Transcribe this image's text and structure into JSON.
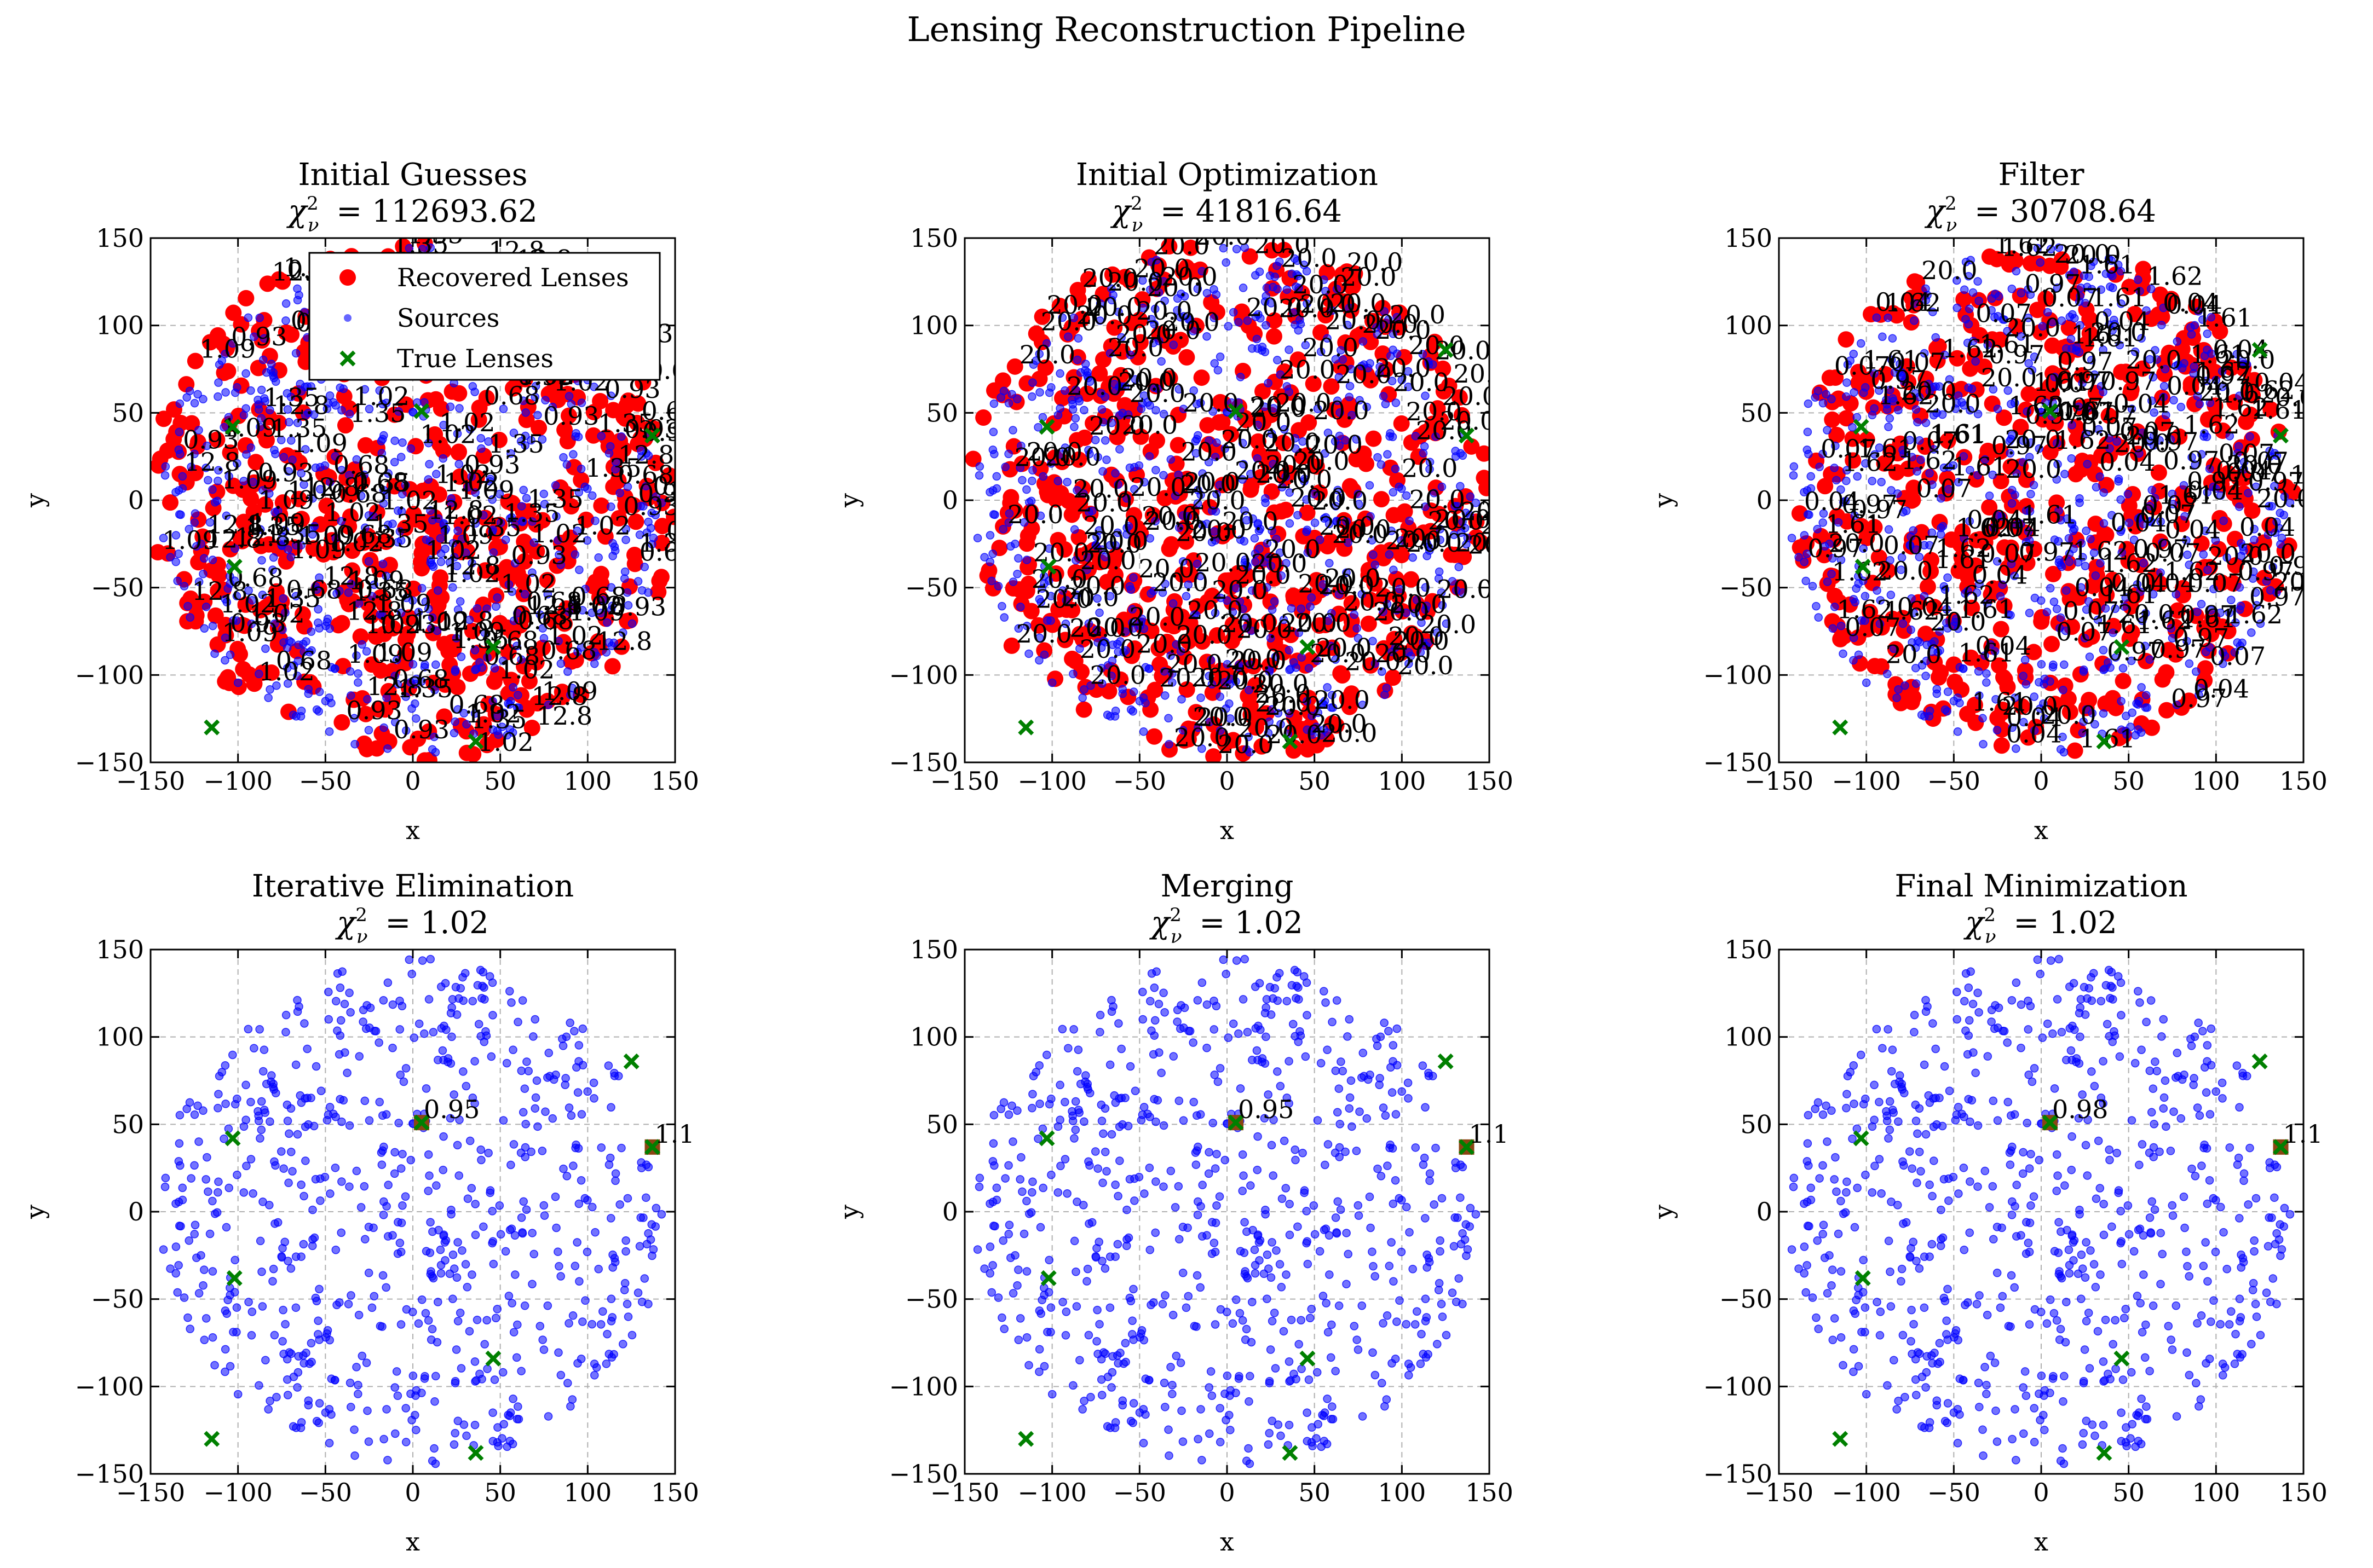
{
  "figure": {
    "title": "Lensing Reconstruction Pipeline"
  },
  "colors": {
    "recovered_lenses": "#ff0000",
    "sources": "#0000ff",
    "true_lenses": "#008000",
    "grid": "#b0b0b0"
  },
  "legend": {
    "location": "upper-right (first panel)",
    "entries": [
      {
        "label": "Recovered Lenses",
        "marker": "red-circle"
      },
      {
        "label": "Sources",
        "marker": "blue-dot"
      },
      {
        "label": "True Lenses",
        "marker": "green-x"
      }
    ]
  },
  "chart_data": [
    {
      "type": "scatter",
      "title": "Initial Guesses",
      "chi2_label": "= 112693.62",
      "xlabel": "x",
      "ylabel": "y",
      "xlim": [
        -150,
        150
      ],
      "ylim": [
        -150,
        150
      ],
      "xticks": [
        "−150",
        "−100",
        "−50",
        "0",
        "50",
        "100",
        "150"
      ],
      "yticks": [
        "−150",
        "−100",
        "−50",
        "0",
        "50",
        "100",
        "150"
      ],
      "grid": true,
      "recovered_lenses": "dense cloud",
      "recovered_lens_annotations": [
        "12.8",
        "1.02",
        "1.35",
        "0.68",
        "0.93",
        "1.09"
      ]
    },
    {
      "type": "scatter",
      "title": "Initial Optimization",
      "chi2_label": "= 41816.64",
      "xlabel": "x",
      "ylabel": "y",
      "xlim": [
        -150,
        150
      ],
      "ylim": [
        -150,
        150
      ],
      "xticks": [
        "−150",
        "−100",
        "−50",
        "0",
        "50",
        "100",
        "150"
      ],
      "yticks": [
        "−150",
        "−100",
        "−50",
        "0",
        "50",
        "100",
        "150"
      ],
      "grid": true,
      "recovered_lenses": "dense cloud",
      "recovered_lens_annotations": [
        "20.0",
        "20.0",
        "20.0",
        "20.0",
        "20.0",
        "20.0"
      ]
    },
    {
      "type": "scatter",
      "title": "Filter",
      "chi2_label": "= 30708.64",
      "xlabel": "x",
      "ylabel": "y",
      "xlim": [
        -150,
        150
      ],
      "ylim": [
        -150,
        150
      ],
      "xticks": [
        "−150",
        "−100",
        "−50",
        "0",
        "50",
        "100",
        "150"
      ],
      "yticks": [
        "−150",
        "−100",
        "−50",
        "0",
        "50",
        "100",
        "150"
      ],
      "grid": true,
      "recovered_lenses": "dense cloud",
      "recovered_lens_annotations": [
        "0.97",
        "1.61",
        "20.0",
        "0.07",
        "0.04",
        "1.62"
      ]
    },
    {
      "type": "scatter",
      "title": "Iterative Elimination",
      "chi2_label": "= 1.02",
      "xlabel": "x",
      "ylabel": "y",
      "xlim": [
        -150,
        150
      ],
      "ylim": [
        -150,
        150
      ],
      "xticks": [
        "−150",
        "−100",
        "−50",
        "0",
        "50",
        "100",
        "150"
      ],
      "yticks": [
        "−150",
        "−100",
        "−50",
        "0",
        "50",
        "100",
        "150"
      ],
      "grid": true,
      "recovered_lenses": [
        {
          "x": 5,
          "y": 51,
          "label": "0.95"
        },
        {
          "x": 137,
          "y": 37,
          "label": "1.1"
        }
      ]
    },
    {
      "type": "scatter",
      "title": "Merging",
      "chi2_label": "= 1.02",
      "xlabel": "x",
      "ylabel": "y",
      "xlim": [
        -150,
        150
      ],
      "ylim": [
        -150,
        150
      ],
      "xticks": [
        "−150",
        "−100",
        "−50",
        "0",
        "50",
        "100",
        "150"
      ],
      "yticks": [
        "−150",
        "−100",
        "−50",
        "0",
        "50",
        "100",
        "150"
      ],
      "grid": true,
      "recovered_lenses": [
        {
          "x": 5,
          "y": 51,
          "label": "0.95"
        },
        {
          "x": 137,
          "y": 37,
          "label": "1.1"
        }
      ]
    },
    {
      "type": "scatter",
      "title": "Final Minimization",
      "chi2_label": "= 1.02",
      "xlabel": "x",
      "ylabel": "y",
      "xlim": [
        -150,
        150
      ],
      "ylim": [
        -150,
        150
      ],
      "xticks": [
        "−150",
        "−100",
        "−50",
        "0",
        "50",
        "100",
        "150"
      ],
      "yticks": [
        "−150",
        "−100",
        "−50",
        "0",
        "50",
        "100",
        "150"
      ],
      "grid": true,
      "recovered_lenses": [
        {
          "x": 5,
          "y": 51,
          "label": "0.98"
        },
        {
          "x": 137,
          "y": 37,
          "label": "1.1"
        }
      ]
    }
  ],
  "true_lenses": [
    {
      "x": 125,
      "y": 86
    },
    {
      "x": 137,
      "y": 37
    },
    {
      "x": 5,
      "y": 51
    },
    {
      "x": -103,
      "y": 42
    },
    {
      "x": -102,
      "y": -38
    },
    {
      "x": 46,
      "y": -84
    },
    {
      "x": -115,
      "y": -130
    },
    {
      "x": 36,
      "y": -138
    }
  ],
  "sources": {
    "count": 700,
    "region": "disk",
    "radius": 145,
    "same_in_all_panels": true
  }
}
